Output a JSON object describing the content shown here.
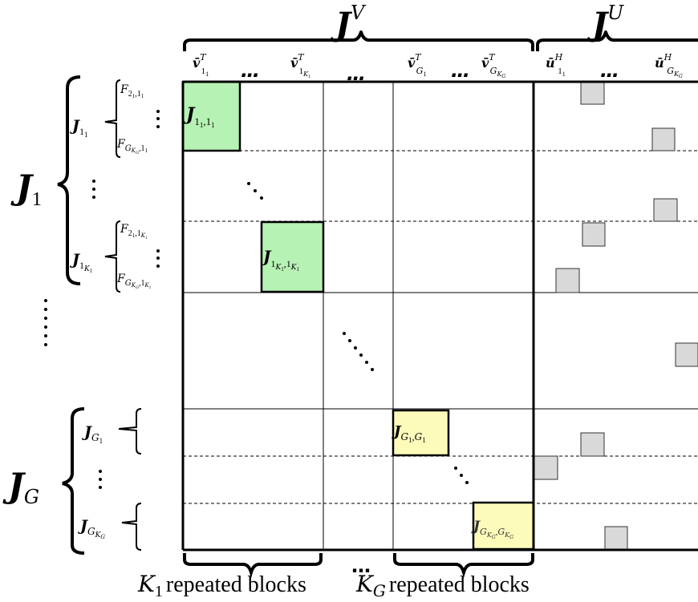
{
  "headers": {
    "JV": {
      "base": "J",
      "sup": "V"
    },
    "JU": {
      "base": "J",
      "sup": "U"
    }
  },
  "column_labels": [
    {
      "base": "v̄",
      "sup": "T",
      "sub": "1",
      "subsub": "1"
    },
    {
      "base": "…"
    },
    {
      "base": "v̄",
      "sup": "T",
      "sub": "1",
      "subsub": "K",
      "subsubsub": "1"
    },
    {
      "base": "…"
    },
    {
      "base": "v̄",
      "sup": "T",
      "sub": "G",
      "subsub": "1"
    },
    {
      "base": "…"
    },
    {
      "base": "v̄",
      "sup": "T",
      "sub": "G",
      "subsub": "K",
      "subsubsub": "G"
    },
    {
      "base": "ū",
      "sup": "H",
      "sub": "1",
      "subsub": "1"
    },
    {
      "base": "…"
    },
    {
      "base": "ū",
      "sup": "H",
      "sub": "G",
      "subsub": "K",
      "subsubsub": "G"
    }
  ],
  "row_groups": [
    {
      "base": "J",
      "sub": "1"
    },
    {
      "base": "J",
      "sub": "G"
    }
  ],
  "row_blocks": [
    {
      "base": "J",
      "sub": "1",
      "subsub": "1"
    },
    {
      "base": "J",
      "sub": "1",
      "subsub": "K",
      "subsubsub": "1"
    },
    {
      "base": "J",
      "sub": "G",
      "subsub": "1"
    },
    {
      "base": "J",
      "sub": "G",
      "subsub": "K",
      "subsubsub": "G"
    }
  ],
  "row_features": [
    {
      "base": "F",
      "sub": "2",
      "subsub": "1",
      "comma": ",1",
      "subsub2": "1"
    },
    {
      "base": "F",
      "sub": "G",
      "subsub": "K",
      "subsubsub": "G",
      "comma": ",1",
      "subsub2": "1"
    },
    {
      "base": "F",
      "sub": "2",
      "subsub": "1",
      "comma": ",1",
      "subsub2": "K",
      "subsubsub2": "1"
    },
    {
      "base": "F",
      "sub": "G",
      "subsub": "K",
      "subsubsub": "G",
      "comma": ",1",
      "subsub2": "K",
      "subsubsub2": "1"
    }
  ],
  "diag_blocks": [
    {
      "base": "J",
      "label": "1",
      "label_sub": "1",
      "label2": "1",
      "label2_sub": "1",
      "color": "#b7f2b5"
    },
    {
      "base": "J",
      "label": "1",
      "label_sub": "K",
      "label_subsub": "1",
      "label2": "1",
      "label2_sub": "K",
      "label2_subsub": "1",
      "color": "#b7f2b5"
    },
    {
      "base": "J",
      "label": "G",
      "label_sub": "1",
      "label2": "G",
      "label2_sub": "1",
      "color": "#fdfbba"
    },
    {
      "base": "J",
      "label": "G",
      "label_sub": "K",
      "label_subsub": "G",
      "label2": "G",
      "label2_sub": "K",
      "label2_subsub": "G",
      "color": "#fdfbba"
    }
  ],
  "bottom_labels": [
    {
      "base": "K",
      "sub": "1",
      "text": "repeated blocks"
    },
    {
      "base": "K",
      "sub": "G",
      "text": "repeated blocks"
    }
  ],
  "ellipsis": "…",
  "vdots": "⋮",
  "colors": {
    "green_block": "#b7f2b5",
    "yellow_block": "#fdfbba",
    "gray_block": "#d9d9d9"
  }
}
